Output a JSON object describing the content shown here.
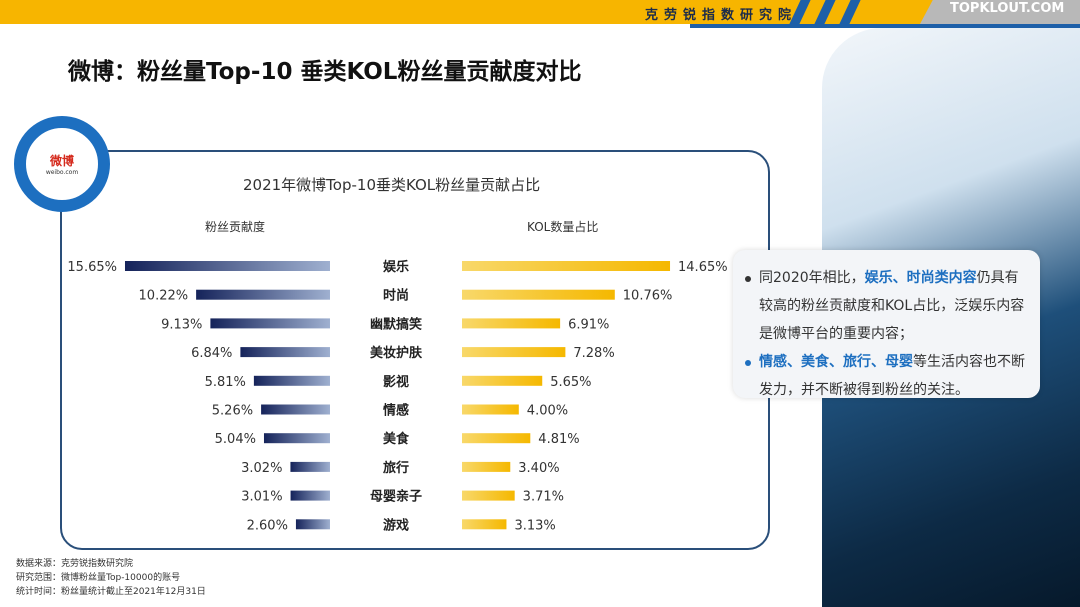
{
  "header": {
    "org": "克劳锐指数研究院",
    "brand": "TOPKLOUT.COM"
  },
  "page_title": "微博：粉丝量Top-10 垂类KOL粉丝量贡献度对比",
  "logo": {
    "name": "微博",
    "sub": "weibo.com"
  },
  "chart_data": {
    "type": "bar",
    "title": "2021年微博Top-10垂类KOL粉丝量贡献占比",
    "categories": [
      "娱乐",
      "时尚",
      "幽默搞笑",
      "美妆护肤",
      "影视",
      "情感",
      "美食",
      "旅行",
      "母婴亲子",
      "游戏"
    ],
    "series": [
      {
        "name": "粉丝贡献度",
        "values": [
          15.65,
          10.22,
          9.13,
          6.84,
          5.81,
          5.26,
          5.04,
          3.02,
          3.01,
          2.6
        ],
        "labels": [
          "15.65%",
          "10.22%",
          "9.13%",
          "6.84%",
          "5.81%",
          "5.26%",
          "5.04%",
          "3.02%",
          "3.01%",
          "2.60%"
        ],
        "color": "#1c2f66",
        "direction": "left"
      },
      {
        "name": "KOL数量占比",
        "values": [
          14.65,
          10.76,
          6.91,
          7.28,
          5.65,
          4.0,
          4.81,
          3.4,
          3.71,
          3.13
        ],
        "labels": [
          "14.65%",
          "10.76%",
          "6.91%",
          "7.28%",
          "5.65%",
          "4.00%",
          "4.81%",
          "3.40%",
          "3.71%",
          "3.13%"
        ],
        "color": "#f5c02a",
        "direction": "right"
      }
    ]
  },
  "note": {
    "p1_pre": "同2020年相比，",
    "p1_hl": "娱乐、时尚类内容",
    "p1_post": "仍具有较高的粉丝贡献度和KOL占比，泛娱乐内容是微博平台的重要内容；",
    "p2_hl": "情感、美食、旅行、母婴",
    "p2_post": "等生活内容也不断发力，并不断被得到粉丝的关注。"
  },
  "footer": [
    "数据来源：克劳锐指数研究院",
    "研究范围：微博粉丝量Top-10000的账号",
    "统计时间：粉丝量统计截止至2021年12月31日"
  ]
}
